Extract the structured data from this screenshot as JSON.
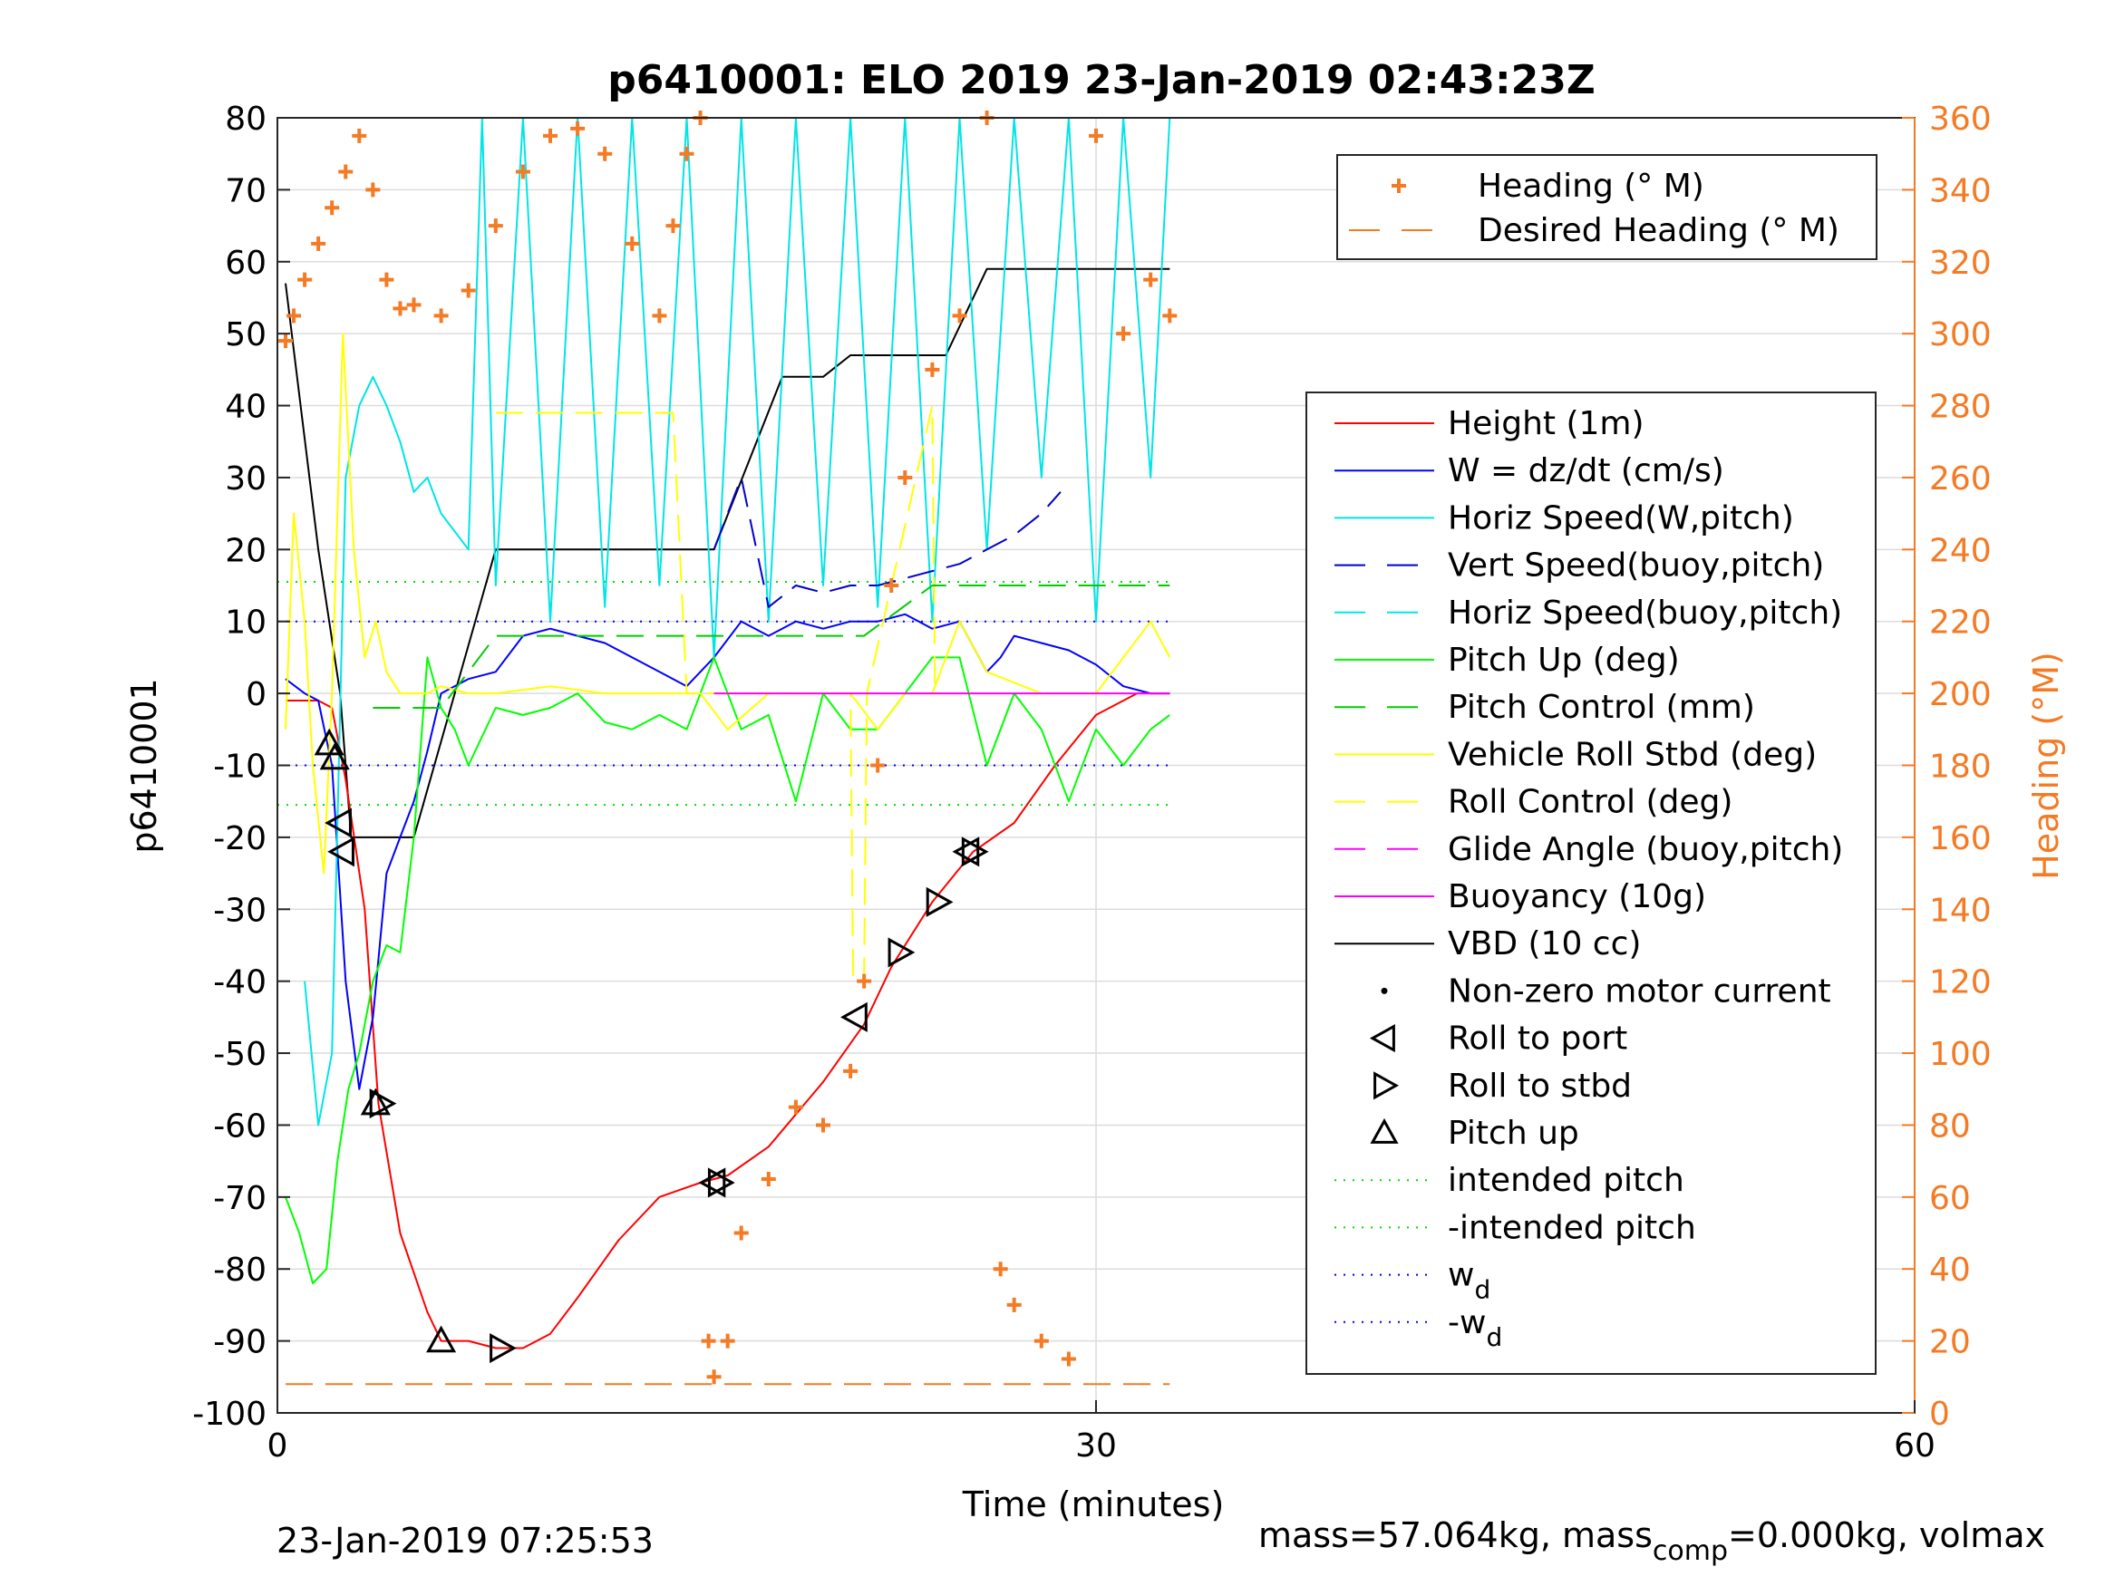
{
  "chart_data": {
    "type": "line",
    "title": "p6410001: ELO 2019 23-Jan-2019 02:43:23Z",
    "xlabel": "Time (minutes)",
    "ylabel_left": "p6410001",
    "ylabel_right": "Heading (°M)",
    "xlim": [
      0,
      60
    ],
    "ylim_left": [
      -100,
      80
    ],
    "ylim_right": [
      0,
      360
    ],
    "x_ticks": [
      "0",
      "30",
      "60"
    ],
    "y_ticks_left": [
      "80",
      "70",
      "60",
      "50",
      "40",
      "30",
      "20",
      "10",
      "0",
      "-10",
      "-20",
      "-30",
      "-40",
      "-50",
      "-60",
      "-70",
      "-80",
      "-90",
      "-100"
    ],
    "y_ticks_right": [
      "360",
      "340",
      "320",
      "300",
      "280",
      "260",
      "240",
      "220",
      "200",
      "180",
      "160",
      "140",
      "120",
      "100",
      "80",
      "60",
      "40",
      "20",
      "0"
    ],
    "grid": true,
    "footer_left": "23-Jan-2019 07:25:53",
    "footer_right_a": "mass=57.064kg, mass",
    "footer_right_sub": "comp",
    "footer_right_b": "=0.000kg, volmax",
    "legend_top": [
      {
        "label": "Heading (° M)",
        "color": "#f47a24",
        "style": "plus"
      },
      {
        "label": "Desired Heading (° M)",
        "color": "#f47a24",
        "style": "dash"
      }
    ],
    "legend_main": [
      {
        "label": "Height (1m)",
        "color": "#ff0000",
        "style": "solid"
      },
      {
        "label": "W = dz/dt (cm/s)",
        "color": "#0000ff",
        "style": "solid"
      },
      {
        "label": "Horiz Speed(W,pitch)",
        "color": "#00e5e5",
        "style": "solid"
      },
      {
        "label": "Vert Speed(buoy,pitch)",
        "color": "#0000cc",
        "style": "dash"
      },
      {
        "label": "Horiz Speed(buoy,pitch)",
        "color": "#00e5e5",
        "style": "dash"
      },
      {
        "label": "Pitch Up (deg)",
        "color": "#00ff00",
        "style": "solid"
      },
      {
        "label": "Pitch Control (mm)",
        "color": "#00cc00",
        "style": "dash"
      },
      {
        "label": "Vehicle Roll Stbd (deg)",
        "color": "#ffff00",
        "style": "solid"
      },
      {
        "label": "Roll Control (deg)",
        "color": "#ffff00",
        "style": "dash"
      },
      {
        "label": "Glide Angle (buoy,pitch)",
        "color": "#ff00ff",
        "style": "dash"
      },
      {
        "label": "Buoyancy (10g)",
        "color": "#ff00ff",
        "style": "solid"
      },
      {
        "label": "VBD (10 cc)",
        "color": "#000000",
        "style": "solid"
      },
      {
        "label": "Non-zero motor current",
        "color": "#000000",
        "style": "dot"
      },
      {
        "label": "Roll to port",
        "color": "#000000",
        "style": "tri-left"
      },
      {
        "label": "Roll to stbd",
        "color": "#000000",
        "style": "tri-right"
      },
      {
        "label": "Pitch up",
        "color": "#000000",
        "style": "tri-up"
      },
      {
        "label": "intended pitch",
        "color": "#00dd00",
        "style": "dotted"
      },
      {
        "label": "-intended pitch",
        "color": "#00dd00",
        "style": "dotted"
      },
      {
        "label": "w",
        "sub": "d",
        "color": "#0000ff",
        "style": "dotted"
      },
      {
        "label": "-w",
        "sub": "d",
        "color": "#0000ff",
        "style": "dotted"
      }
    ],
    "series": [
      {
        "name": "VBD (10 cc)",
        "color": "#000000",
        "axis": "left",
        "x": [
          0.3,
          1.5,
          2.3,
          2.7,
          3.5,
          5.0,
          8.0,
          15.0,
          16.0,
          18.5,
          20.0,
          21.0,
          24.5,
          26.0,
          30.0,
          32.7
        ],
        "y": [
          57,
          20,
          0,
          -20,
          -20,
          -20,
          20,
          20,
          20,
          44,
          44,
          47,
          47,
          59,
          59,
          59
        ]
      },
      {
        "name": "Height (1m)",
        "color": "#ff0000",
        "axis": "left",
        "x": [
          0.3,
          1.5,
          2.0,
          2.5,
          3.2,
          3.7,
          4.5,
          5.5,
          6.0,
          7.0,
          8.0,
          9.0,
          10.0,
          11.0,
          12.5,
          14.0,
          15.5,
          16.5,
          18.0,
          20.0,
          21.5,
          22.5,
          24.0,
          25.5,
          27.0,
          28.5,
          30.0,
          31.5,
          32.7
        ],
        "y": [
          -1,
          -1,
          -2,
          -12,
          -30,
          -57,
          -75,
          -86,
          -90,
          -90,
          -91,
          -91,
          -89,
          -84,
          -76,
          -70,
          -68,
          -67,
          -63,
          -54,
          -46,
          -38,
          -29,
          -22,
          -18,
          -10,
          -3,
          0,
          0
        ]
      },
      {
        "name": "W = dz/dt (cm/s)",
        "color": "#0000ff",
        "axis": "left",
        "x": [
          0.3,
          1.0,
          1.5,
          2.0,
          2.5,
          3.0,
          3.5,
          4.0,
          4.5,
          5.0,
          5.5,
          6.0,
          7.0,
          8.0,
          9.0,
          10.0,
          11.0,
          12.0,
          13.0,
          14.0,
          15.0,
          16.0,
          17.0,
          18.0,
          19.0,
          20.0,
          21.0,
          22.0,
          23.0,
          24.0,
          25.0,
          26.0,
          26.5,
          27.0,
          28.0,
          29.0,
          30.0,
          31.0,
          32.0,
          32.7
        ],
        "y": [
          2,
          0,
          -1,
          -10,
          -40,
          -55,
          -45,
          -25,
          -20,
          -15,
          -8,
          0,
          2,
          3,
          8,
          9,
          8,
          7,
          5,
          3,
          1,
          5,
          10,
          8,
          10,
          9,
          10,
          10,
          11,
          9,
          10,
          3,
          5,
          8,
          7,
          6,
          4,
          1,
          0,
          0
        ]
      },
      {
        "name": "Horiz Speed(W,pitch)",
        "color": "#00e5e5",
        "axis": "left",
        "x": [
          1.0,
          1.5,
          2.0,
          2.5,
          3.0,
          3.5,
          4.0,
          4.5,
          5.0,
          5.5,
          6.0,
          7.0,
          7.5,
          8.0,
          9.0,
          10.0,
          11.0,
          12.0,
          13.0,
          14.0,
          15.0,
          16.0,
          17.0,
          18.0,
          19.0,
          20.0,
          21.0,
          22.0,
          23.0,
          24.0,
          25.0,
          26.0,
          27.0,
          28.0,
          29.0,
          30.0,
          31.0,
          32.0,
          32.7
        ],
        "y": [
          -40,
          -60,
          -50,
          30,
          40,
          44,
          40,
          35,
          28,
          30,
          25,
          20,
          80,
          15,
          80,
          10,
          80,
          12,
          80,
          15,
          80,
          5,
          80,
          10,
          80,
          15,
          80,
          12,
          80,
          10,
          80,
          20,
          80,
          30,
          80,
          10,
          80,
          30,
          80
        ]
      },
      {
        "name": "Pitch Up (deg)",
        "color": "#00ff00",
        "axis": "left",
        "x": [
          0.3,
          0.8,
          1.3,
          1.8,
          2.2,
          2.6,
          3.0,
          3.5,
          4.0,
          4.5,
          5.0,
          5.5,
          6.0,
          6.5,
          7.0,
          8.0,
          9.0,
          10.0,
          11.0,
          12.0,
          13.0,
          14.0,
          15.0,
          16.0,
          17.0,
          18.0,
          19.0,
          20.0,
          21.0,
          22.0,
          23.0,
          24.0,
          25.0,
          26.0,
          27.0,
          28.0,
          29.0,
          30.0,
          31.0,
          32.0,
          32.7
        ],
        "y": [
          -70,
          -75,
          -82,
          -80,
          -65,
          -55,
          -50,
          -40,
          -35,
          -36,
          -20,
          5,
          -2,
          -5,
          -10,
          -2,
          -3,
          -2,
          0,
          -4,
          -5,
          -3,
          -5,
          5,
          -5,
          -3,
          -15,
          0,
          -5,
          -5,
          0,
          5,
          5,
          -10,
          0,
          -5,
          -15,
          -5,
          -10,
          -5,
          -3
        ]
      },
      {
        "name": "Vehicle Roll Stbd (deg)",
        "color": "#ffff00",
        "axis": "left",
        "x": [
          0.3,
          0.6,
          1.0,
          1.3,
          1.7,
          2.0,
          2.4,
          2.8,
          3.2,
          3.6,
          4.0,
          4.5,
          5.0,
          5.5,
          6.0,
          7.0,
          8.0,
          10.0,
          12.0,
          14.0,
          15.5,
          16.5,
          18.0,
          20.0,
          21.0,
          22.0,
          23.0,
          24.0,
          25.0,
          26.0,
          28.0,
          30.0,
          32.0,
          32.7
        ],
        "y": [
          -5,
          25,
          10,
          -10,
          -25,
          0,
          50,
          20,
          5,
          10,
          3,
          0,
          0,
          0,
          1,
          0,
          0,
          1,
          0,
          0,
          0,
          -5,
          0,
          0,
          0,
          -5,
          0,
          0,
          10,
          3,
          0,
          0,
          10,
          5
        ]
      },
      {
        "name": "Roll Control (deg)",
        "color": "#ffff00",
        "axis": "left",
        "x": [
          8.0,
          14.5,
          15.0,
          21.0,
          21.1,
          21.5,
          21.6,
          24.0,
          24.1
        ],
        "y": [
          39,
          39,
          0,
          0,
          -40,
          -40,
          0,
          40,
          0
        ]
      },
      {
        "name": "Pitch Control (mm)",
        "color": "#00cc00",
        "axis": "left",
        "x": [
          3.5,
          5.0,
          6.0,
          8.0,
          10.0,
          15.0,
          16.0,
          20.0,
          21.5,
          24.0,
          26.0,
          30.0,
          32.7
        ],
        "y": [
          -2,
          -2,
          -2,
          8,
          8,
          8,
          8,
          8,
          8,
          15,
          15,
          15,
          15
        ]
      },
      {
        "name": "Vert Speed(buoy,pitch)",
        "color": "#0000cc",
        "axis": "left",
        "x": [
          16.0,
          17.0,
          18.0,
          19.0,
          20.0,
          21.0,
          22.0,
          23.0,
          24.0,
          25.0,
          26.0,
          27.0,
          28.0,
          28.7
        ],
        "y": [
          20,
          30,
          12,
          15,
          14,
          15,
          15,
          16,
          17,
          18,
          20,
          22,
          25,
          28
        ]
      },
      {
        "name": "Buoyancy (10g)",
        "color": "#ff00ff",
        "axis": "left",
        "x": [
          16.0,
          32.7
        ],
        "y": [
          0,
          0
        ]
      },
      {
        "name": "Heading (° M)",
        "color": "#f47a24",
        "axis": "right",
        "marker": "plus",
        "x": [
          0.3,
          0.6,
          1.0,
          1.5,
          2.0,
          2.5,
          3.0,
          3.5,
          4.0,
          4.5,
          5.0,
          6.0,
          7.0,
          8.0,
          9.0,
          10.0,
          11.0,
          12.0,
          13.0,
          14.0,
          14.5,
          15.0,
          15.5,
          15.8,
          16.0,
          16.5,
          17.0,
          18.0,
          19.0,
          20.0,
          21.0,
          21.5,
          22.0,
          22.5,
          23.0,
          24.0,
          25.0,
          26.0,
          26.5,
          27.0,
          28.0,
          29.0,
          30.0,
          31.0,
          32.0,
          32.7
        ],
        "y": [
          298,
          305,
          315,
          325,
          335,
          345,
          355,
          340,
          315,
          307,
          308,
          305,
          312,
          330,
          345,
          355,
          357,
          350,
          325,
          305,
          330,
          350,
          360,
          20,
          10,
          20,
          50,
          65,
          85,
          80,
          95,
          120,
          180,
          230,
          260,
          290,
          305,
          360,
          40,
          30,
          20,
          15,
          355,
          300,
          315,
          305
        ]
      },
      {
        "name": "Desired Heading (° M)",
        "color": "#f47a24",
        "axis": "right",
        "x": [
          0.3,
          32.7
        ],
        "y": [
          8,
          8
        ]
      }
    ],
    "markers": {
      "pitch_up": {
        "x": [
          1.9,
          2.1,
          3.6,
          6.0
        ],
        "y": [
          -7,
          -9,
          -57,
          -90
        ]
      },
      "roll_port": {
        "x": [
          2.3,
          2.4,
          16.0,
          21.2,
          25.3
        ],
        "y": [
          -18,
          -22,
          -68,
          -45,
          -22
        ]
      },
      "roll_stbd": {
        "x": [
          3.8,
          8.2,
          16.2,
          22.8,
          24.2,
          25.5
        ],
        "y": [
          -57,
          -91,
          -68,
          -36,
          -29,
          -22
        ]
      }
    },
    "reference_lines": {
      "intended_pitch": 15.5,
      "neg_intended_pitch": -15.5,
      "w_d": 10,
      "neg_w_d": -10
    }
  }
}
